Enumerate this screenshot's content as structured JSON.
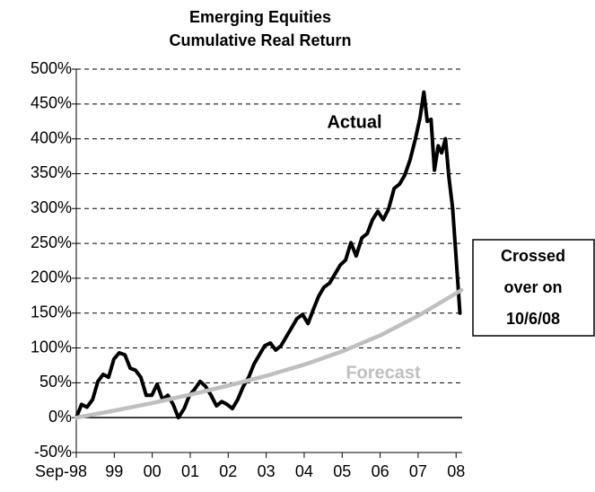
{
  "chart_data": {
    "type": "line",
    "title": [
      "Emerging Equities",
      "Cumulative Real Return"
    ],
    "series": [
      {
        "name": "Actual",
        "color": "#000000",
        "x": [
          1998.67,
          1998.81,
          1998.95,
          1999.1,
          1999.24,
          1999.38,
          1999.52,
          1999.66,
          1999.8,
          1999.95,
          2000.09,
          2000.23,
          2000.37,
          2000.51,
          2000.66,
          2000.8,
          2000.94,
          2001.08,
          2001.22,
          2001.36,
          2001.51,
          2001.65,
          2001.79,
          2001.93,
          2002.07,
          2002.22,
          2002.36,
          2002.5,
          2002.64,
          2002.78,
          2002.92,
          2003.07,
          2003.21,
          2003.35,
          2003.49,
          2003.63,
          2003.78,
          2003.92,
          2004.06,
          2004.2,
          2004.34,
          2004.48,
          2004.63,
          2004.77,
          2004.91,
          2005.05,
          2005.19,
          2005.34,
          2005.48,
          2005.62,
          2005.76,
          2005.9,
          2006.04,
          2006.19,
          2006.33,
          2006.47,
          2006.61,
          2006.75,
          2006.89,
          2007.04,
          2007.18,
          2007.32,
          2007.46,
          2007.6,
          2007.72,
          2007.82,
          2007.91,
          2008.01,
          2008.1,
          2008.2,
          2008.29,
          2008.39,
          2008.48,
          2008.58,
          2008.67,
          2008.77
        ],
        "values": [
          0,
          19,
          15,
          26,
          52,
          62,
          58,
          84,
          93,
          90,
          71,
          68,
          58,
          32,
          32,
          48,
          26,
          32,
          19,
          0,
          13,
          32,
          41,
          52,
          45,
          32,
          17,
          23,
          19,
          13,
          26,
          45,
          58,
          77,
          90,
          103,
          107,
          97,
          103,
          116,
          129,
          142,
          148,
          135,
          155,
          174,
          187,
          193,
          206,
          219,
          226,
          251,
          232,
          258,
          264,
          284,
          296,
          284,
          299,
          329,
          335,
          348,
          370,
          400,
          430,
          467,
          425,
          428,
          355,
          390,
          380,
          400,
          345,
          300,
          230,
          150
        ]
      },
      {
        "name": "Forecast",
        "color": "#bfbfbf",
        "x": [
          1998.67,
          1999.67,
          2000.67,
          2001.67,
          2002.67,
          2003.67,
          2004.67,
          2005.67,
          2006.67,
          2007.67,
          2008.81
        ],
        "values": [
          0,
          10,
          21,
          33,
          46,
          60,
          76,
          95,
          118,
          146,
          183
        ]
      }
    ],
    "xlim": [
      1998.67,
      2008.83
    ],
    "xticks": [
      {
        "value": 1998.67,
        "label": "Sep-98"
      },
      {
        "value": 1999.67,
        "label": "99"
      },
      {
        "value": 2000.67,
        "label": "00"
      },
      {
        "value": 2001.67,
        "label": "01"
      },
      {
        "value": 2002.67,
        "label": "02"
      },
      {
        "value": 2003.67,
        "label": "03"
      },
      {
        "value": 2004.67,
        "label": "04"
      },
      {
        "value": 2005.67,
        "label": "05"
      },
      {
        "value": 2006.67,
        "label": "06"
      },
      {
        "value": 2007.67,
        "label": "07"
      },
      {
        "value": 2008.67,
        "label": "08"
      }
    ],
    "ylim": [
      -50,
      500
    ],
    "yticks": [
      {
        "value": -50,
        "label": "-50%"
      },
      {
        "value": 0,
        "label": "0%"
      },
      {
        "value": 50,
        "label": "50%"
      },
      {
        "value": 100,
        "label": "100%"
      },
      {
        "value": 150,
        "label": "150%"
      },
      {
        "value": 200,
        "label": "200%"
      },
      {
        "value": 250,
        "label": "250%"
      },
      {
        "value": 300,
        "label": "300%"
      },
      {
        "value": 350,
        "label": "350%"
      },
      {
        "value": 400,
        "label": "400%"
      },
      {
        "value": 450,
        "label": "450%"
      },
      {
        "value": 500,
        "label": "500%"
      }
    ],
    "grid": true,
    "annotation": [
      "Crossed",
      "over on",
      "10/6/08"
    ]
  }
}
